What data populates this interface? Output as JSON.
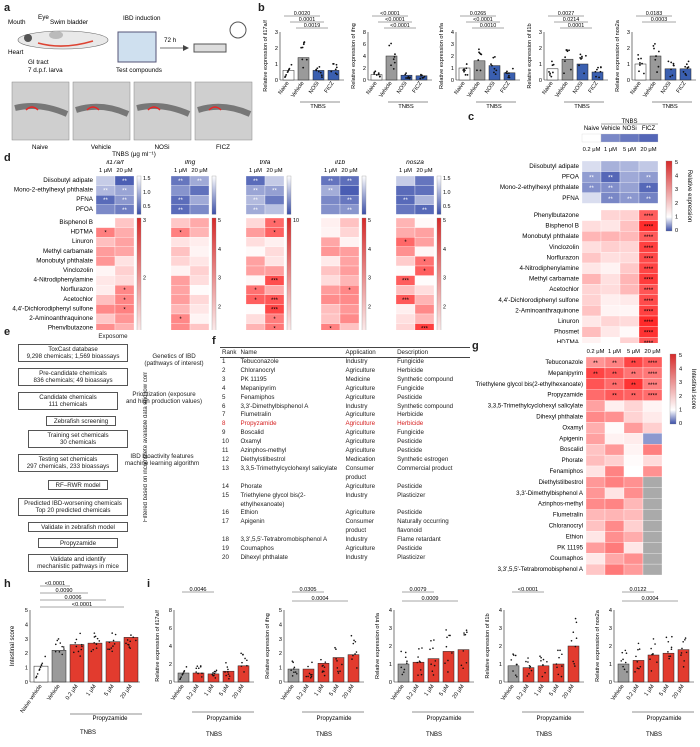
{
  "panel_letters": [
    "a",
    "b",
    "c",
    "d",
    "e",
    "f",
    "g",
    "h",
    "i"
  ],
  "panel_a": {
    "labels": [
      "Eye",
      "Mouth",
      "Swim bladder",
      "Heart",
      "GI tract",
      "7 d.p.f. larva",
      "IBD induction",
      "72 h",
      "Test compounds"
    ],
    "groups": [
      "Naive",
      "Vehicle",
      "NOSi",
      "FICZ"
    ],
    "group_caption": "TNBS (μg ml⁻¹)"
  },
  "panel_b": {
    "charts": [
      {
        "ylabel": "Relative expression of il17a/f",
        "cats": [
          "Naive",
          "Vehicle",
          "NOSi",
          "FICZ"
        ],
        "values": [
          0.6,
          1.4,
          0.6,
          0.6
        ],
        "ylim": [
          0,
          3
        ],
        "yticks": [
          "0",
          "1",
          "2",
          "3"
        ],
        "pvals": [
          "0.0020",
          "0.0001",
          "0.0019"
        ],
        "xgroup": "TNBS"
      },
      {
        "ylabel": "Relative expression of ifng",
        "cats": [
          "Naive",
          "Vehicle",
          "NOSi",
          "FICZ"
        ],
        "values": [
          0.9,
          4.0,
          0.8,
          0.7
        ],
        "ylim": [
          0,
          8
        ],
        "yticks": [
          "0",
          "2",
          "4",
          "6",
          "8"
        ],
        "pvals": [
          "<0.0001",
          "<0.0001",
          "<0.0001"
        ],
        "xgroup": "TNBS"
      },
      {
        "ylabel": "Relative expression of tnfa",
        "cats": [
          "Naive",
          "Vehicle",
          "NOSi",
          "FICZ"
        ],
        "values": [
          1.0,
          1.6,
          1.2,
          0.6
        ],
        "ylim": [
          0,
          4
        ],
        "yticks": [
          "0",
          "1",
          "2",
          "3",
          "4"
        ],
        "pvals": [
          "0.0265",
          "<0.0001",
          "0.0010"
        ],
        "xgroup": "TNBS"
      },
      {
        "ylabel": "Relative expression of il1b",
        "cats": [
          "Naive",
          "Vehicle",
          "NOSi",
          "FICZ"
        ],
        "values": [
          0.7,
          1.3,
          1.0,
          0.5
        ],
        "ylim": [
          0,
          3
        ],
        "yticks": [
          "0",
          "1",
          "2",
          "3"
        ],
        "pvals": [
          "0.0027",
          "0.0214",
          "0.0001"
        ],
        "xgroup": "TNBS"
      },
      {
        "ylabel": "Relative expression of nos2a",
        "cats": [
          "Naive",
          "Vehicle",
          "NOSi",
          "FICZ"
        ],
        "values": [
          1.0,
          1.5,
          0.7,
          0.7
        ],
        "ylim": [
          0,
          3
        ],
        "yticks": [
          "0",
          "1",
          "2",
          "3"
        ],
        "pvals": [
          "0.0183",
          "0.0003"
        ],
        "xgroup": "TNBS"
      }
    ]
  },
  "panel_c": {
    "header_cols": [
      "Naive",
      "Vehicle",
      "NOSi",
      "FICZ"
    ],
    "header_group": "TNBS",
    "sub_cols": [
      "0.2 μM",
      "1 μM",
      "5 μM",
      "20 μM"
    ],
    "colorbar_label": "Relative expression",
    "colorbar_ticks": [
      "5",
      "4",
      "3",
      "2",
      "1",
      "0"
    ],
    "top_rows": [
      "Diisobutyl adipate",
      "PFOA",
      "Mono-2-ethylhexyl phthalate",
      "PFNA"
    ],
    "bottom_rows": [
      "Phenylbutazone",
      "Bisphenol B",
      "Monobutyl phthalate",
      "Vinclozolin",
      "Norflurazon",
      "4-Nitrodiphenylamine",
      "Methyl carbamate",
      "Acetochlor",
      "4,4'-Dichlorodiphenyl sulfone",
      "2-Aminoanthraquinone",
      "Linuron",
      "Phosmet",
      "HDTMA"
    ]
  },
  "panel_d": {
    "genes": [
      "il17a/f",
      "ifng",
      "tnfa",
      "il1b",
      "nos2a"
    ],
    "doses": [
      "1 μM",
      "20 μM"
    ],
    "top_rows": [
      "Diisobutyl adipate",
      "Mono-2-ethylhexyl phthalate",
      "PFNA",
      "PFOA"
    ],
    "bottom_rows": [
      "Bisphenol B",
      "HDTMA",
      "Linuron",
      "Methyl carbamate",
      "Monobutyl phthalate",
      "Vinclozolin",
      "4-Nitrodiphenylamine",
      "Norflurazon",
      "Acetochlor",
      "4,4'-Dichlorodiphenyl sulfone",
      "2-Aminoanthraquinone",
      "Phenylbutazone",
      "Phosmet"
    ],
    "top_scale": [
      "1.5",
      "1.0",
      "0.5"
    ],
    "bottom_scales": [
      [
        "3",
        "2",
        "1"
      ],
      [
        "5",
        "4",
        "3",
        "2",
        "1"
      ],
      [
        "10",
        "5"
      ],
      [
        "5",
        "4",
        "3",
        "2",
        "1"
      ],
      [
        "5",
        "4",
        "3",
        "2",
        "1"
      ]
    ]
  },
  "panel_e": {
    "boxes": [
      "Exposome",
      "ToxCast database\n9,298 chemicals; 1,569 bioassays",
      "Genetics of IBD\n(pathways of interest)",
      "Pre-candidate chemicals\n836 chemicals; 49 bioassays",
      "Prioritization (exposure\nand high production values)",
      "Candidate chemicals\n111 chemicals",
      "Zebrafish screening",
      "Training set chemicals\n30 chemicals",
      "IBD bioactivity features\nmachine learning algorithm",
      "Testing set chemicals\n297 chemicals, 233 bioassays",
      "RF–RWR model",
      "Predicted IBD-worsening chemicals\nTop 20 predicted chemicals",
      "Validate in zebrafish model",
      "Propyzamide",
      "Validate and identify\nmechanistic pathways in mice"
    ],
    "side_label": "Filtered based on incomplete available data and low correlation with training set"
  },
  "panel_f": {
    "headers": [
      "Rank",
      "Name",
      "Application",
      "Description"
    ],
    "rows": [
      [
        "1",
        "Tebuconazole",
        "Industry",
        "Fungicide"
      ],
      [
        "2",
        "Chloranocryl",
        "Agriculture",
        "Herbicide"
      ],
      [
        "3",
        "PK 11195",
        "Medicine",
        "Synthetic compound"
      ],
      [
        "4",
        "Mepanipyrim",
        "Agriculture",
        "Fungicide"
      ],
      [
        "5",
        "Fenamiphos",
        "Agriculture",
        "Pesticide"
      ],
      [
        "6",
        "3,3'-Dimethylbisphenol A",
        "Industry",
        "Synthetic compound"
      ],
      [
        "7",
        "Flumetralin",
        "Agriculture",
        "Herbicide"
      ],
      [
        "8",
        "Propyzamide",
        "Agriculture",
        "Herbicide"
      ],
      [
        "9",
        "Boscalid",
        "Agriculture",
        "Fungicide"
      ],
      [
        "10",
        "Oxamyl",
        "Agriculture",
        "Pesticide"
      ],
      [
        "11",
        "Azinphos-methyl",
        "Agriculture",
        "Pesticide"
      ],
      [
        "12",
        "Diethylstilbestrol",
        "Medication",
        "Synthetic estrogen"
      ],
      [
        "13",
        "3,3,5-Trimethylcyclohexyl salicylate",
        "Consumer product",
        "Commercial product"
      ],
      [
        "14",
        "Phorate",
        "Agriculture",
        "Pesticide"
      ],
      [
        "15",
        "Triethylene glycol bis(2-ethylhexanoate)",
        "Industry",
        "Plasticizer"
      ],
      [
        "16",
        "Ethion",
        "Agriculture",
        "Pesticide"
      ],
      [
        "17",
        "Apigenin",
        "Consumer product",
        "Naturally occurring flavonoid"
      ],
      [
        "18",
        "3,3',5,5'-Tetrabromobisphenol A",
        "Industry",
        "Flame retardant"
      ],
      [
        "19",
        "Coumaphos",
        "Agriculture",
        "Pesticide"
      ],
      [
        "20",
        "Dihexyl phthalate",
        "Industry",
        "Plasticizer"
      ]
    ]
  },
  "panel_g": {
    "cols": [
      "0.2 μM",
      "1 μM",
      "5 μM",
      "20 μM"
    ],
    "rows": [
      "Tebuconazole",
      "Mepanipyrim",
      "Triethylene glycol bis(2-ethylhexanoate)",
      "Propyzamide",
      "3,3,5-Trimethylcyclohexyl salicylate",
      "Dihexyl phthalate",
      "Oxamyl",
      "Apigenin",
      "Boscalid",
      "Phorate",
      "Fenamiphos",
      "Diethylstilbestrol",
      "3,3'-Dimethylbisphenol A",
      "Azinphos-methyl",
      "Flumetralin",
      "Chloranocryl",
      "Ethion",
      "PK 11195",
      "Coumaphos",
      "3,3',5,5'-Tetrabromobisphenol A"
    ],
    "colorbar_label": "Intestinal score",
    "colorbar_ticks": [
      "5",
      "4",
      "3",
      "2",
      "1",
      "0"
    ]
  },
  "panel_h": {
    "ylabel": "Intestinal score",
    "yticks": [
      "0",
      "1",
      "2",
      "3",
      "4",
      "5"
    ],
    "cats": [
      "Naive vehicle",
      "Vehicle",
      "0.2 μM",
      "1 μM",
      "5 μM",
      "20 μM"
    ],
    "group_label": "Propyzamide",
    "xgroup": "TNBS",
    "pvals": [
      "<0.0001",
      "0.0090",
      "0.0006",
      "<0.0001"
    ]
  },
  "panel_i": {
    "charts": [
      {
        "ylabel": "Relative expression of il17a/f",
        "yticks": [
          "0",
          "2",
          "4",
          "6",
          "8"
        ],
        "pvals": [
          "0.0046"
        ]
      },
      {
        "ylabel": "Relative expression of ifng",
        "yticks": [
          "0",
          "1",
          "2",
          "3",
          "4",
          "5"
        ],
        "pvals": [
          "0.0305",
          "0.0004"
        ]
      },
      {
        "ylabel": "Relative expression of tnfa",
        "yticks": [
          "0",
          "1",
          "2",
          "3",
          "4"
        ],
        "pvals": [
          "0.0079",
          "0.0009"
        ]
      },
      {
        "ylabel": "Relative expression of il1b",
        "yticks": [
          "0",
          "1",
          "2",
          "3",
          "4"
        ],
        "pvals": [
          "<0.0001"
        ]
      },
      {
        "ylabel": "Relative expression of nos2a",
        "yticks": [
          "0",
          "1",
          "2",
          "3",
          "4"
        ],
        "pvals": [
          "0.0122",
          "0.0004"
        ]
      }
    ],
    "cats": [
      "Vehicle",
      "0.2 μM",
      "1 μM",
      "5 μM",
      "20 μM"
    ],
    "group_label": "Propyzamide",
    "xgroup": "TNBS"
  },
  "chart_data": [
    {
      "type": "bar",
      "categories": [
        "Naive",
        "Vehicle",
        "NOSi",
        "FICZ"
      ],
      "values": [
        0.6,
        1.4,
        0.6,
        0.6
      ],
      "ylabel": "Relative expression of il17a/f",
      "ylim": [
        0,
        3
      ]
    },
    {
      "type": "bar",
      "categories": [
        "Naive",
        "Vehicle",
        "NOSi",
        "FICZ"
      ],
      "values": [
        0.9,
        4.0,
        0.8,
        0.7
      ],
      "ylabel": "Relative expression of ifng",
      "ylim": [
        0,
        8
      ]
    },
    {
      "type": "bar",
      "categories": [
        "Naive",
        "Vehicle",
        "NOSi",
        "FICZ"
      ],
      "values": [
        1.0,
        1.6,
        1.2,
        0.6
      ],
      "ylabel": "Relative expression of tnfa",
      "ylim": [
        0,
        4
      ]
    },
    {
      "type": "bar",
      "categories": [
        "Naive",
        "Vehicle",
        "NOSi",
        "FICZ"
      ],
      "values": [
        0.7,
        1.3,
        1.0,
        0.5
      ],
      "ylabel": "Relative expression of il1b",
      "ylim": [
        0,
        3
      ]
    },
    {
      "type": "bar",
      "categories": [
        "Naive",
        "Vehicle",
        "NOSi",
        "FICZ"
      ],
      "values": [
        1.0,
        1.5,
        0.7,
        0.7
      ],
      "ylabel": "Relative expression of nos2a",
      "ylim": [
        0,
        3
      ]
    },
    {
      "type": "bar",
      "categories": [
        "Naive vehicle",
        "Vehicle",
        "0.2 μM",
        "1 μM",
        "5 μM",
        "20 μM"
      ],
      "values": [
        1.1,
        2.2,
        2.6,
        2.7,
        2.8,
        3.1
      ],
      "ylabel": "Intestinal score",
      "ylim": [
        0,
        5
      ]
    },
    {
      "type": "bar",
      "categories": [
        "Vehicle",
        "0.2 μM",
        "1 μM",
        "5 μM",
        "20 μM"
      ],
      "values": [
        1.0,
        1.0,
        0.9,
        1.2,
        1.8
      ],
      "ylabel": "Relative expression of il17a/f",
      "ylim": [
        0,
        8
      ]
    },
    {
      "type": "bar",
      "categories": [
        "Vehicle",
        "0.2 μM",
        "1 μM",
        "5 μM",
        "20 μM"
      ],
      "values": [
        0.9,
        0.9,
        1.3,
        1.7,
        1.9
      ],
      "ylabel": "Relative expression of ifng",
      "ylim": [
        0,
        5
      ]
    },
    {
      "type": "bar",
      "categories": [
        "Vehicle",
        "0.2 μM",
        "1 μM",
        "5 μM",
        "20 μM"
      ],
      "values": [
        1.0,
        1.1,
        1.3,
        1.7,
        1.8
      ],
      "ylabel": "Relative expression of tnfa",
      "ylim": [
        0,
        4
      ]
    },
    {
      "type": "bar",
      "categories": [
        "Vehicle",
        "0.2 μM",
        "1 μM",
        "5 μM",
        "20 μM"
      ],
      "values": [
        0.9,
        0.8,
        0.9,
        1.0,
        2.0
      ],
      "ylabel": "Relative expression of il1b",
      "ylim": [
        0,
        4
      ]
    },
    {
      "type": "bar",
      "categories": [
        "Vehicle",
        "0.2 μM",
        "1 μM",
        "5 μM",
        "20 μM"
      ],
      "values": [
        1.0,
        1.2,
        1.5,
        1.6,
        1.8
      ],
      "ylabel": "Relative expression of nos2a",
      "ylim": [
        0,
        4
      ]
    }
  ]
}
